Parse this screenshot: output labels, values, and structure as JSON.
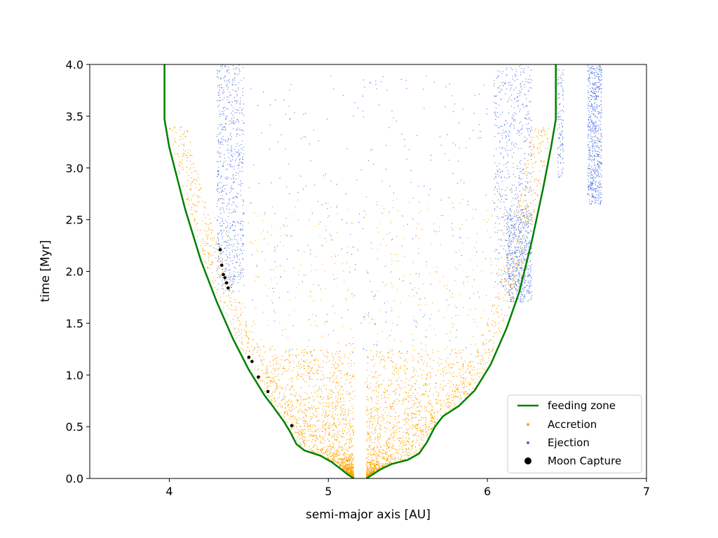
{
  "chart_data": {
    "type": "scatter",
    "xlabel": "semi-major axis [AU]",
    "ylabel": "time [Myr]",
    "xlim": [
      3.5,
      7.0
    ],
    "ylim": [
      0.0,
      4.0
    ],
    "xticks": [
      4,
      5,
      6,
      7
    ],
    "xtick_labels": [
      "4",
      "5",
      "6",
      "7"
    ],
    "yticks": [
      0.0,
      0.5,
      1.0,
      1.5,
      2.0,
      2.5,
      3.0,
      3.5,
      4.0
    ],
    "ytick_labels": [
      "0.0",
      "0.5",
      "1.0",
      "1.5",
      "2.0",
      "2.5",
      "3.0",
      "3.5",
      "4.0"
    ],
    "grid": false,
    "legend_position": "lower-right",
    "legend": [
      {
        "label": "feeding zone",
        "marker": "line",
        "color": "#008000"
      },
      {
        "label": "Accretion",
        "marker": "dot",
        "color": "#ffa500"
      },
      {
        "label": "Ejection",
        "marker": "dot",
        "color": "#4169e1"
      },
      {
        "label": "Moon Capture",
        "marker": "dot",
        "color": "#000000"
      }
    ],
    "series": [
      {
        "name": "feeding zone",
        "kind": "line",
        "color": "#008000",
        "inner_boundary": [
          [
            3.97,
            4.0
          ],
          [
            3.97,
            3.47
          ],
          [
            4.0,
            3.2
          ],
          [
            4.05,
            2.9
          ],
          [
            4.1,
            2.6
          ],
          [
            4.2,
            2.1
          ],
          [
            4.3,
            1.7
          ],
          [
            4.4,
            1.35
          ],
          [
            4.5,
            1.05
          ],
          [
            4.6,
            0.8
          ],
          [
            4.65,
            0.7
          ],
          [
            4.72,
            0.55
          ],
          [
            4.76,
            0.45
          ],
          [
            4.8,
            0.33
          ],
          [
            4.85,
            0.27
          ],
          [
            4.95,
            0.22
          ],
          [
            5.02,
            0.16
          ],
          [
            5.08,
            0.09
          ],
          [
            5.12,
            0.04
          ],
          [
            5.16,
            0.0
          ]
        ],
        "outer_boundary": [
          [
            5.24,
            0.0
          ],
          [
            5.28,
            0.04
          ],
          [
            5.33,
            0.09
          ],
          [
            5.4,
            0.14
          ],
          [
            5.5,
            0.18
          ],
          [
            5.57,
            0.24
          ],
          [
            5.62,
            0.35
          ],
          [
            5.67,
            0.5
          ],
          [
            5.72,
            0.6
          ],
          [
            5.82,
            0.7
          ],
          [
            5.92,
            0.85
          ],
          [
            6.02,
            1.1
          ],
          [
            6.12,
            1.45
          ],
          [
            6.2,
            1.8
          ],
          [
            6.28,
            2.3
          ],
          [
            6.35,
            2.8
          ],
          [
            6.4,
            3.2
          ],
          [
            6.43,
            3.47
          ],
          [
            6.43,
            4.0
          ]
        ]
      },
      {
        "name": "Accretion",
        "kind": "scatter",
        "color": "#ffa500",
        "regions": [
          {
            "a": [
              4.84,
              5.16
            ],
            "t": [
              0.0,
              1.3
            ],
            "density": "high"
          },
          {
            "a": [
              5.24,
              5.6
            ],
            "t": [
              0.0,
              1.3
            ],
            "density": "high"
          },
          {
            "a": [
              4.5,
              6.0
            ],
            "t": [
              0.5,
              2.7
            ],
            "density": "sparse"
          },
          {
            "a": [
              4.3,
              4.48
            ],
            "t": [
              1.8,
              3.5
            ],
            "density": "stripes"
          },
          {
            "a": [
              6.04,
              6.28
            ],
            "t": [
              1.8,
              3.5
            ],
            "density": "stripes"
          }
        ]
      },
      {
        "name": "Ejection",
        "kind": "scatter",
        "color": "#4169e1",
        "regions": [
          {
            "a": [
              4.3,
              4.47
            ],
            "t": [
              1.8,
              4.0
            ],
            "density": "medium"
          },
          {
            "a": [
              6.04,
              6.28
            ],
            "t": [
              1.8,
              4.0
            ],
            "density": "medium"
          },
          {
            "a": [
              6.12,
              6.28
            ],
            "t": [
              1.7,
              2.6
            ],
            "density": "high"
          },
          {
            "a": [
              6.63,
              6.72
            ],
            "t": [
              2.65,
              4.0
            ],
            "density": "high"
          },
          {
            "a": [
              6.44,
              6.48
            ],
            "t": [
              2.9,
              4.0
            ],
            "density": "medium"
          },
          {
            "a": [
              4.5,
              6.0
            ],
            "t": [
              1.2,
              3.9
            ],
            "density": "sparse"
          }
        ]
      },
      {
        "name": "Moon Capture",
        "kind": "scatter",
        "color": "#000000",
        "points": [
          [
            4.32,
            2.21
          ],
          [
            4.33,
            2.06
          ],
          [
            4.34,
            1.97
          ],
          [
            4.35,
            1.94
          ],
          [
            4.36,
            1.89
          ],
          [
            4.37,
            1.84
          ],
          [
            4.5,
            1.17
          ],
          [
            4.52,
            1.13
          ],
          [
            4.56,
            0.98
          ],
          [
            4.62,
            0.84
          ],
          [
            4.77,
            0.51
          ]
        ]
      }
    ]
  }
}
